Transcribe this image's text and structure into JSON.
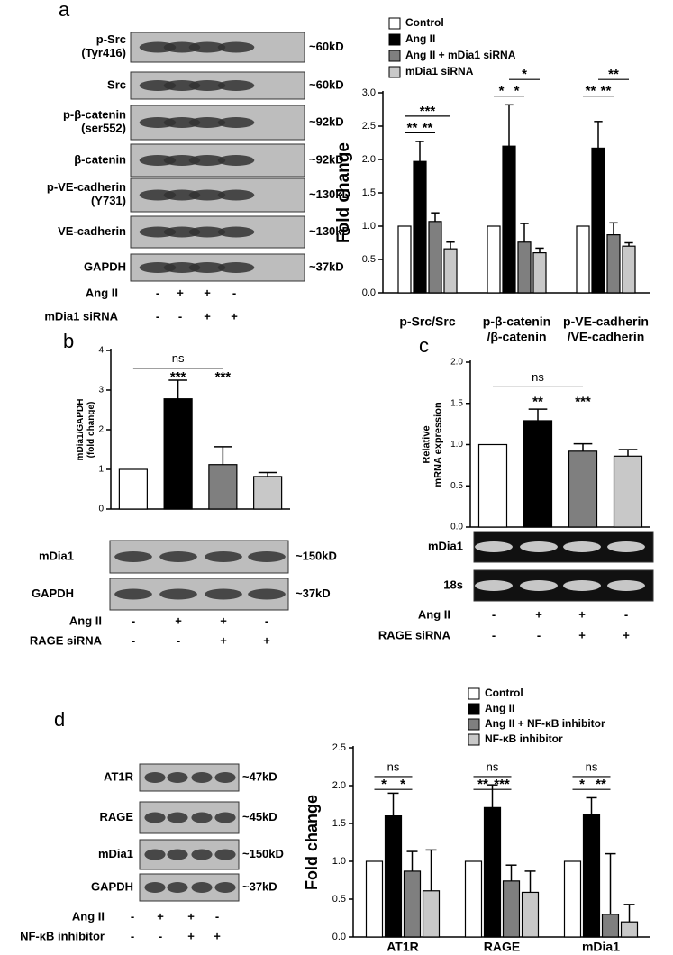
{
  "panel_labels": [
    "a",
    "b",
    "c",
    "d"
  ],
  "chart_data": [
    {
      "type": "bar",
      "ylabel": "Fold change",
      "categories": [
        "p-Src/Src",
        "p-β-catenin\n/β-catenin",
        "p-VE-cadherin\n/VE-cadherin"
      ],
      "series": [
        {
          "name": "Control",
          "color": "#ffffff",
          "values": [
            1.0,
            1.0,
            1.0
          ]
        },
        {
          "name": "Ang II",
          "color": "#000000",
          "values": [
            1.97,
            2.2,
            2.17
          ],
          "errors": [
            0.3,
            0.62,
            0.4
          ]
        },
        {
          "name": "Ang II + mDia1 siRNA",
          "color": "#7f7f7f",
          "values": [
            1.07,
            0.76,
            0.87
          ],
          "errors": [
            0.13,
            0.28,
            0.18
          ]
        },
        {
          "name": "mDia1 siRNA",
          "color": "#c8c8c8",
          "values": [
            0.66,
            0.6,
            0.7
          ],
          "errors": [
            0.1,
            0.07,
            0.05
          ]
        }
      ],
      "ylim": [
        0,
        3
      ],
      "yticks": [
        {
          "value": 0,
          "label": "0.0"
        },
        {
          "value": 0.5,
          "label": "0.5"
        },
        {
          "value": 1,
          "label": "1.0"
        },
        {
          "value": 1.5,
          "label": "1.5"
        },
        {
          "value": 2,
          "label": "2.0"
        },
        {
          "value": 2.5,
          "label": "2.5"
        },
        {
          "value": 3,
          "label": "3.0"
        }
      ],
      "annotations": [
        "**",
        "**",
        "***",
        "*",
        "*",
        "*",
        "**",
        "**",
        "**"
      ]
    },
    {
      "type": "bar",
      "ylabel": "mDia1/GAPDH\n(fold change)",
      "values": [
        1.0,
        2.78,
        1.12,
        0.82
      ],
      "errors": [
        null,
        0.47,
        0.45,
        0.1
      ],
      "colors": [
        "#ffffff",
        "#000000",
        "#7f7f7f",
        "#c8c8c8"
      ],
      "ylim": [
        0,
        4
      ],
      "yticks": [
        0,
        1,
        2,
        3,
        4
      ],
      "annotations": [
        "ns",
        "***",
        "***"
      ]
    },
    {
      "type": "bar",
      "ylabel": "Relative\nmRNA expression",
      "values": [
        1.0,
        1.29,
        0.92,
        0.86
      ],
      "errors": [
        null,
        0.14,
        0.09,
        0.08
      ],
      "colors": [
        "#ffffff",
        "#000000",
        "#7f7f7f",
        "#c8c8c8"
      ],
      "ylim": [
        0,
        2
      ],
      "yticks": [
        {
          "value": 0,
          "label": "0.0"
        },
        {
          "value": 0.5,
          "label": "0.5"
        },
        {
          "value": 1,
          "label": "1.0"
        },
        {
          "value": 1.5,
          "label": "1.5"
        },
        {
          "value": 2,
          "label": "2.0"
        }
      ],
      "annotations": [
        "ns",
        "**",
        "***"
      ]
    },
    {
      "type": "bar",
      "ylabel": "Fold change",
      "categories": [
        "AT1R",
        "RAGE",
        "mDia1"
      ],
      "series": [
        {
          "name": "Control",
          "color": "#ffffff",
          "values": [
            1.0,
            1.0,
            1.0
          ]
        },
        {
          "name": "Ang II",
          "color": "#000000",
          "values": [
            1.6,
            1.71,
            1.62
          ],
          "errors": [
            0.3,
            0.3,
            0.22
          ]
        },
        {
          "name": "Ang II + NF-κB inhibitor",
          "color": "#7f7f7f",
          "values": [
            0.87,
            0.74,
            0.3
          ],
          "errors": [
            0.26,
            0.21,
            0.8
          ]
        },
        {
          "name": "NF-κB inhibitor",
          "color": "#c8c8c8",
          "values": [
            0.61,
            0.59,
            0.2
          ],
          "errors": [
            0.54,
            0.28,
            0.23
          ]
        }
      ],
      "ylim": [
        0,
        2.5
      ],
      "yticks": [
        {
          "value": 0,
          "label": "0.0"
        },
        {
          "value": 0.5,
          "label": "0.5"
        },
        {
          "value": 1,
          "label": "1.0"
        },
        {
          "value": 1.5,
          "label": "1.5"
        },
        {
          "value": 2,
          "label": "2.0"
        },
        {
          "value": 2.5,
          "label": "2.5"
        }
      ],
      "annotations": [
        "ns",
        "*",
        "*",
        "ns",
        "**",
        "***",
        "ns",
        "*",
        "**"
      ]
    }
  ],
  "blots": [
    {
      "rows": [
        {
          "label": "p-Src\n(Tyr416)",
          "size": "~60kD"
        },
        {
          "label": "Src",
          "size": "~60kD"
        },
        {
          "label": "p-β-catenin\n(ser552)",
          "size": "~92kD"
        },
        {
          "label": "β-catenin",
          "size": "~92kD"
        },
        {
          "label": "p-VE-cadherin\n(Y731)",
          "size": "~130kD"
        },
        {
          "label": "VE-cadherin",
          "size": "~130kD"
        },
        {
          "label": "GAPDH",
          "size": "~37kD"
        }
      ],
      "treatments": [
        {
          "label": "Ang II",
          "values": [
            "-",
            "+",
            "+",
            "-"
          ]
        },
        {
          "label": "mDia1 siRNA",
          "values": [
            "-",
            "-",
            "+",
            "+"
          ]
        }
      ]
    },
    {
      "rows": [
        {
          "label": "mDia1",
          "size": "~150kD"
        },
        {
          "label": "GAPDH",
          "size": "~37kD"
        }
      ],
      "treatments": [
        {
          "label": "Ang II",
          "values": [
            "-",
            "+",
            "+",
            "-"
          ]
        },
        {
          "label": "RAGE siRNA",
          "values": [
            "-",
            "-",
            "+",
            "+"
          ]
        }
      ]
    },
    {
      "rows": [
        {
          "label": "mDia1"
        },
        {
          "label": "18s"
        }
      ],
      "treatments": [
        {
          "label": "Ang II",
          "values": [
            "-",
            "+",
            "+",
            "-"
          ]
        },
        {
          "label": "RAGE siRNA",
          "values": [
            "-",
            "-",
            "+",
            "+"
          ]
        }
      ]
    },
    {
      "rows": [
        {
          "label": "AT1R",
          "size": "~47kD"
        },
        {
          "label": "RAGE",
          "size": "~45kD"
        },
        {
          "label": "mDia1",
          "size": "~150kD"
        },
        {
          "label": "GAPDH",
          "size": "~37kD"
        }
      ],
      "treatments": [
        {
          "label": "Ang II",
          "values": [
            "-",
            "+",
            "+",
            "-"
          ]
        },
        {
          "label": "NF-κB inhibitor",
          "values": [
            "-",
            "-",
            "+",
            "+"
          ]
        }
      ]
    }
  ]
}
